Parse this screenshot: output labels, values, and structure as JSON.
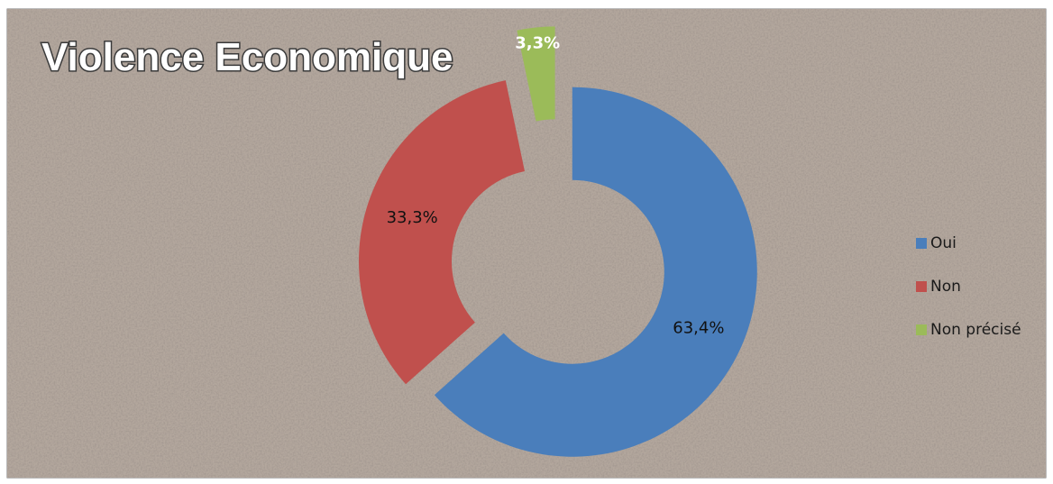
{
  "chart_data": {
    "type": "donut",
    "title": "Violence Economique",
    "categories": [
      "Oui",
      "Non",
      "Non précisé"
    ],
    "values": [
      63.4,
      33.3,
      3.3
    ],
    "value_labels": [
      "63,4%",
      "33,3%",
      "3,3%"
    ],
    "colors": [
      "#4a7ebb",
      "#c0504d",
      "#9bbb59"
    ],
    "legend": "right"
  }
}
